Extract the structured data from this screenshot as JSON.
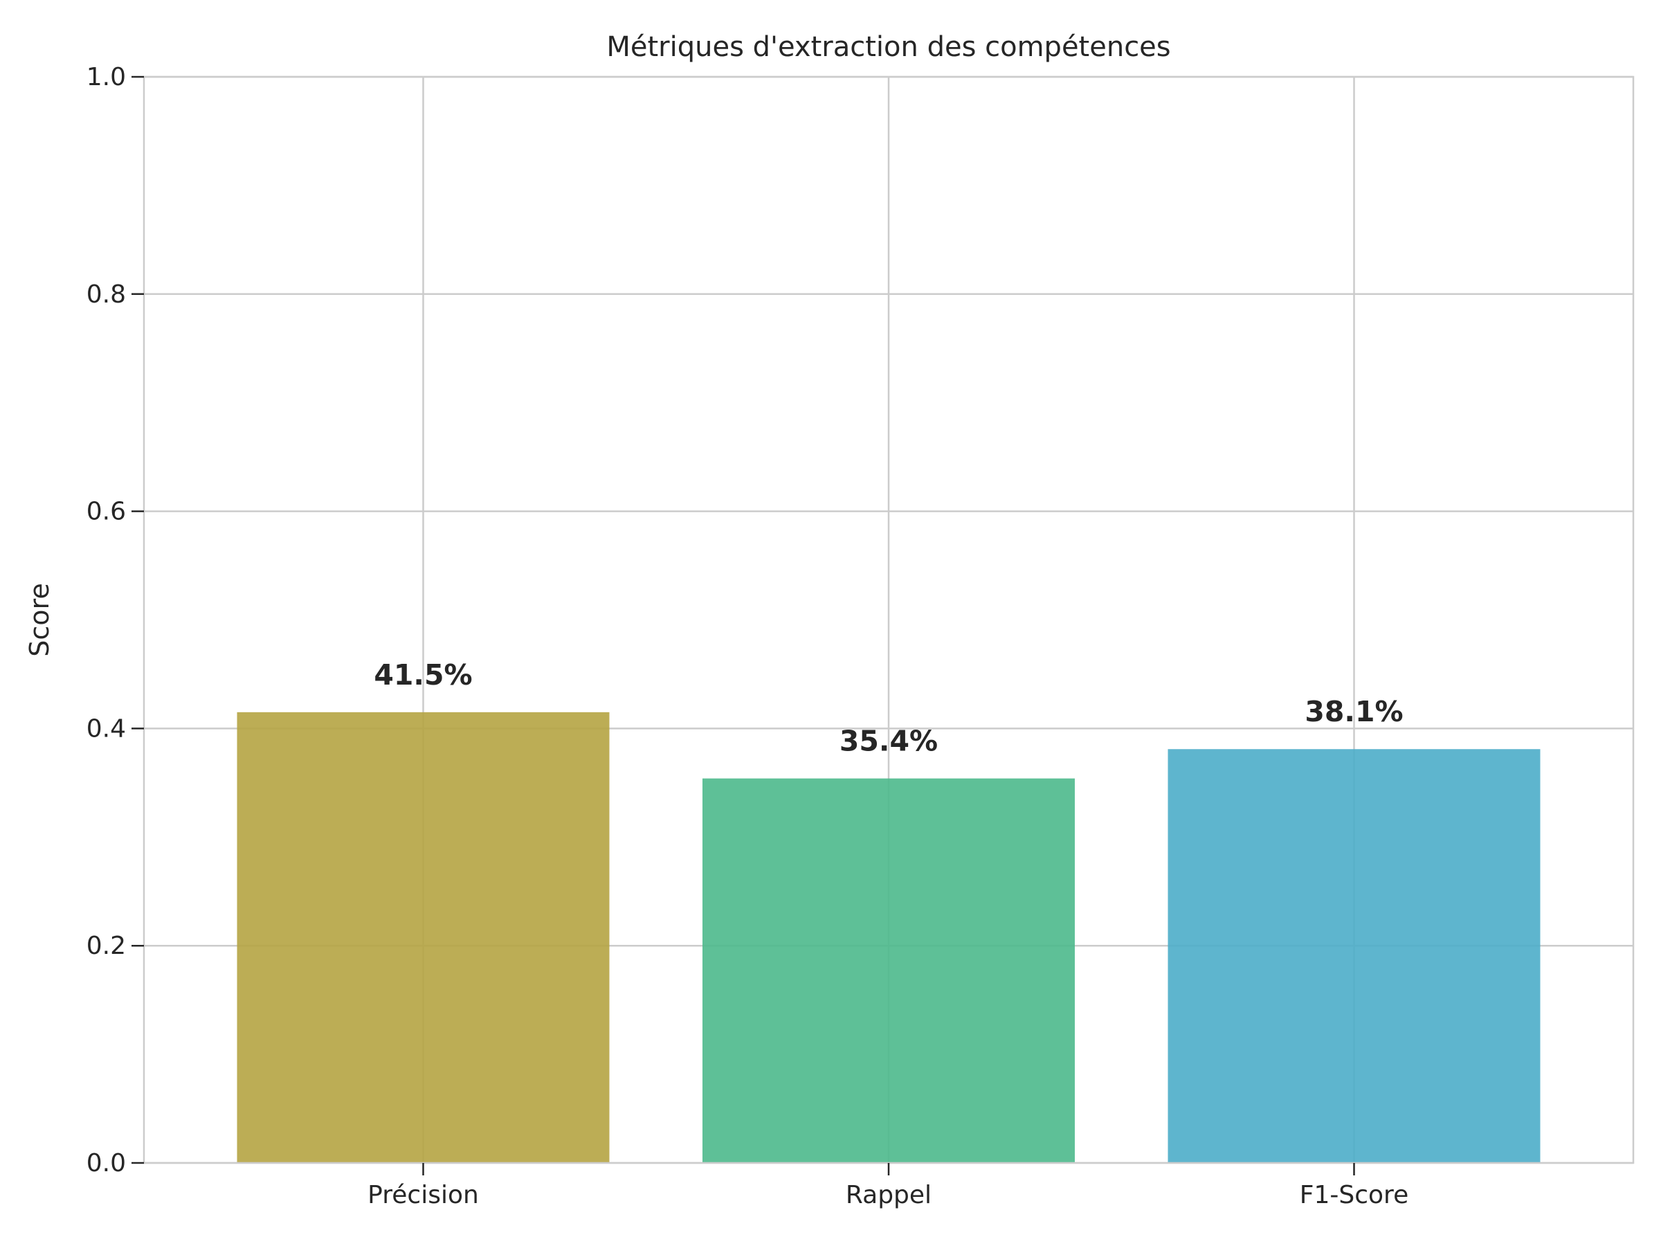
{
  "chart_data": {
    "type": "bar",
    "title": "Métriques d'extraction des compétences",
    "xlabel": "",
    "ylabel": "Score",
    "categories": [
      "Précision",
      "Rappel",
      "F1-Score"
    ],
    "values": [
      0.415,
      0.354,
      0.381
    ],
    "value_labels": [
      "41.5%",
      "35.4%",
      "38.1%"
    ],
    "colors": [
      "#b5a443",
      "#4cb98c",
      "#4cadc9"
    ],
    "ylim": [
      0,
      1.0
    ],
    "yticks": [
      0.0,
      0.2,
      0.4,
      0.6,
      0.8,
      1.0
    ],
    "ytick_labels": [
      "0.0",
      "0.2",
      "0.4",
      "0.6",
      "0.8",
      "1.0"
    ],
    "grid": true,
    "legend": "none"
  }
}
